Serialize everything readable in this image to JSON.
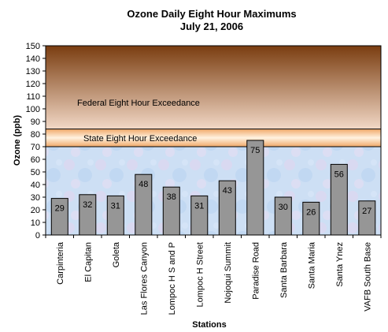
{
  "chart_data": {
    "type": "bar",
    "title": "Ozone Daily Eight Hour Maximums",
    "subtitle": "July 21, 2006",
    "xlabel": "Stations",
    "ylabel": "Ozone (ppb)",
    "ylim": [
      0,
      150
    ],
    "yticks": [
      0,
      10,
      20,
      30,
      40,
      50,
      60,
      70,
      80,
      90,
      100,
      110,
      120,
      130,
      140,
      150
    ],
    "categories": [
      "Carpinteria",
      "El Capitan",
      "Goleta",
      "Las Flores Canyon",
      "Lompoc H S and P",
      "Lompoc H Street",
      "Nojoqui Summit",
      "Paradise Road",
      "Santa Barbara",
      "Santa Maria",
      "Santa Ynez",
      "VAFB South Base"
    ],
    "values": [
      29,
      32,
      31,
      48,
      38,
      31,
      43,
      75,
      30,
      26,
      56,
      27
    ],
    "thresholds": [
      {
        "label": "State Eight Hour Exceedance",
        "from": 70,
        "to": 84
      },
      {
        "label": "Federal Eight Hour Exceedance",
        "from": 84,
        "to": 150
      }
    ],
    "grid": false,
    "legend": "none",
    "colors": {
      "bar": "#969696",
      "bar_stroke": "#000000",
      "below_band": "#cfe0f5",
      "state_band_edge": "#f0a868",
      "state_band_center": "#fff2e0",
      "federal_top": "#7a3d10",
      "federal_bottom": "#f2d8c6"
    }
  }
}
